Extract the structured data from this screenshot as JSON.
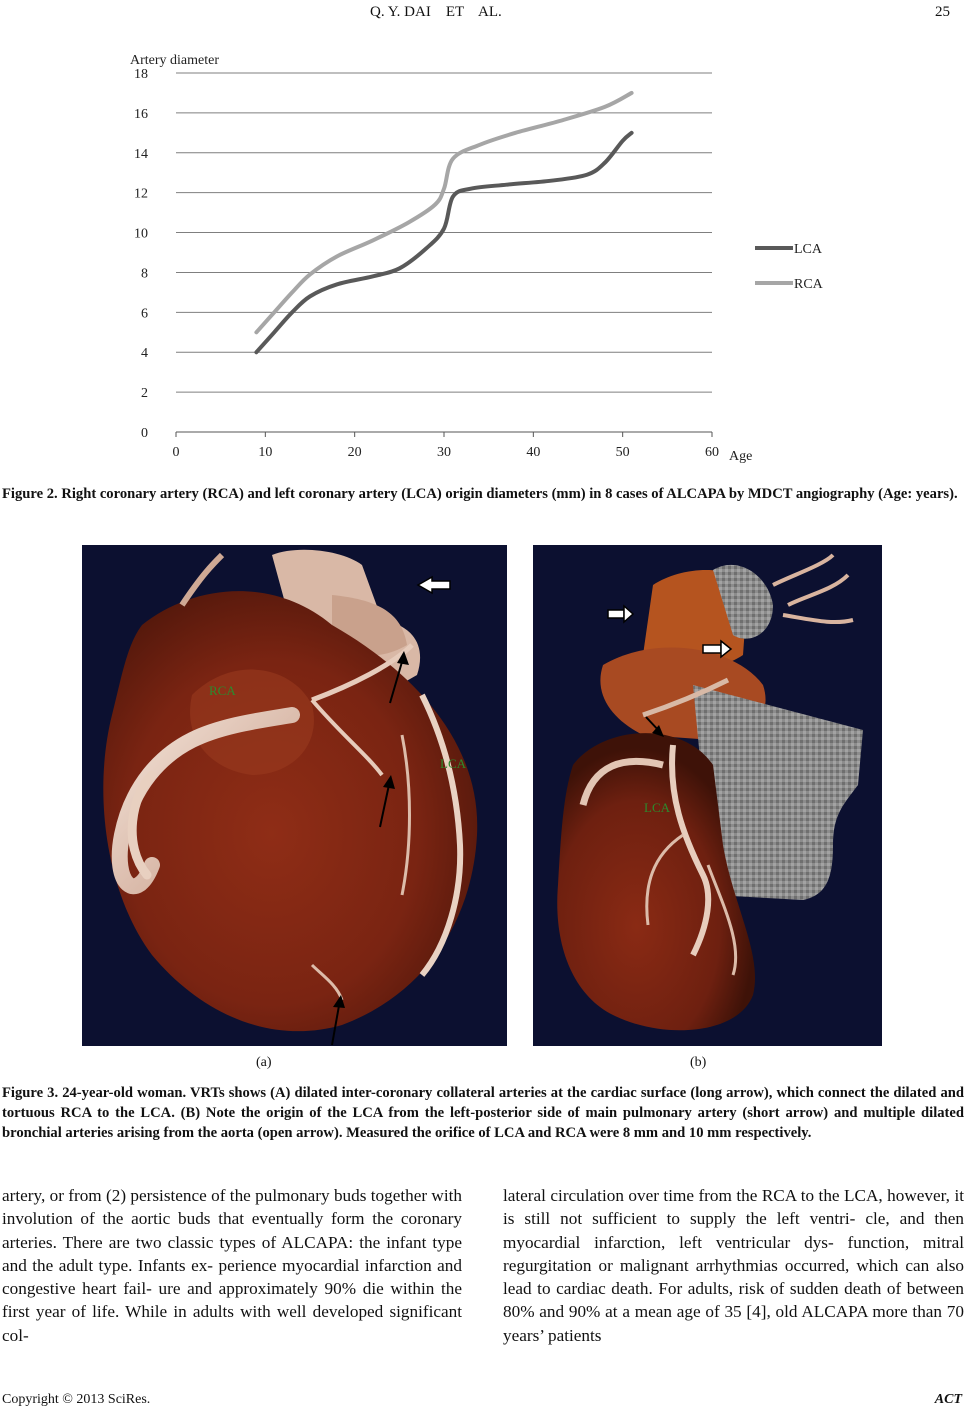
{
  "header": {
    "authors": "Q. Y. DAI    ET    AL.",
    "page_number": "25"
  },
  "figure2": {
    "caption": "Figure 2. Right coronary artery (RCA) and left coronary artery (LCA) origin diameters (mm) in 8 cases of ALCAPA by MDCT angiography (Age: years)."
  },
  "chart_data": {
    "type": "line",
    "ylabel": "Artery diameter",
    "xlabel": "Age",
    "xlim": [
      0,
      60
    ],
    "ylim": [
      0,
      18
    ],
    "x_ticks": [
      "0",
      "10",
      "20",
      "30",
      "40",
      "50",
      "60"
    ],
    "y_ticks": [
      "0",
      "2",
      "4",
      "6",
      "8",
      "10",
      "12",
      "14",
      "16",
      "18"
    ],
    "grid": "horizontal",
    "legend_position": "right",
    "series": [
      {
        "name": "LCA",
        "color": "#595959",
        "points": [
          [
            9,
            4.0
          ],
          [
            11,
            5.0
          ],
          [
            13,
            6.0
          ],
          [
            15,
            6.8
          ],
          [
            18,
            7.4
          ],
          [
            22,
            7.8
          ],
          [
            25,
            8.2
          ],
          [
            28,
            9.2
          ],
          [
            30,
            10.2
          ],
          [
            31,
            11.8
          ],
          [
            33,
            12.2
          ],
          [
            37,
            12.4
          ],
          [
            42,
            12.6
          ],
          [
            46,
            12.9
          ],
          [
            48,
            13.5
          ],
          [
            50,
            14.6
          ],
          [
            51,
            15.0
          ]
        ]
      },
      {
        "name": "RCA",
        "color": "#a6a6a6",
        "points": [
          [
            9,
            5.0
          ],
          [
            11,
            6.0
          ],
          [
            13,
            7.0
          ],
          [
            15,
            7.9
          ],
          [
            18,
            8.8
          ],
          [
            22,
            9.6
          ],
          [
            26,
            10.5
          ],
          [
            29,
            11.4
          ],
          [
            30,
            12.2
          ],
          [
            31,
            13.7
          ],
          [
            34,
            14.4
          ],
          [
            38,
            15.0
          ],
          [
            43,
            15.6
          ],
          [
            48,
            16.3
          ],
          [
            51,
            17.0
          ]
        ]
      }
    ]
  },
  "figure3": {
    "panel_a_labels": {
      "rca": "RCA",
      "lca": "LCA"
    },
    "panel_b_labels": {
      "lca": "LCA"
    },
    "panel_a_tag": "(a)",
    "panel_b_tag": "(b)",
    "caption": "Figure 3. 24-year-old woman. VRTs shows (A) dilated inter-coronary collateral arteries at the cardiac surface (long arrow), which connect the dilated and tortuous RCA to the LCA. (B) Note the origin of the LCA from the left-posterior side of main pulmonary artery (short arrow) and multiple dilated bronchial arteries arising from the aorta (open arrow). Measured the orifice of LCA and RCA were 8 mm and 10 mm respectively."
  },
  "body": {
    "left_column": "artery, or from (2) persistence of the pulmonary buds together with involution of the aortic buds that eventually form the coronary arteries. There are two classic types of ALCAPA: the infant type and the adult type. Infants ex- perience myocardial infarction and congestive heart fail- ure and approximately 90% die within the first year of life. While in adults with well developed significant col-",
    "right_column": "lateral circulation over time from the RCA to the LCA, however, it is still not sufficient to supply the left ventri- cle, and then myocardial infarction, left ventricular dys- function, mitral regurgitation or malignant arrhythmias occurred, which can also lead to cardiac death. For adults, risk of sudden death of between 80% and 90% at a mean age of 35 [4], old ALCAPA more than 70 years’ patients"
  },
  "footer": {
    "copyright": "Copyright © 2013 SciRes.",
    "journal": "ACT"
  }
}
